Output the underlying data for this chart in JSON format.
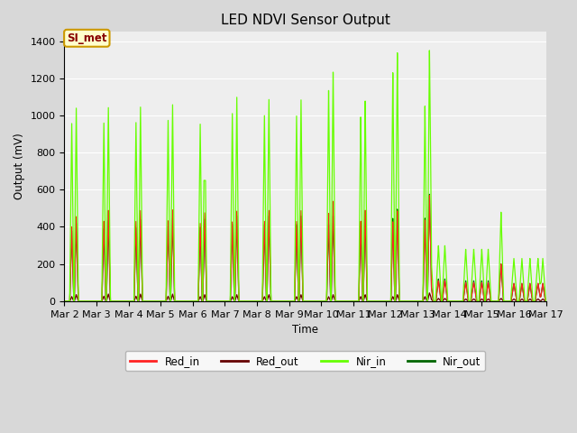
{
  "title": "LED NDVI Sensor Output",
  "xlabel": "Time",
  "ylabel": "Output (mV)",
  "ylim": [
    0,
    1450
  ],
  "yticks": [
    0,
    200,
    400,
    600,
    800,
    1000,
    1200,
    1400
  ],
  "xtick_labels": [
    "Mar 2",
    "Mar 3",
    "Mar 4",
    "Mar 5",
    "Mar 6",
    "Mar 7",
    "Mar 8",
    "Mar 9",
    "Mar 10",
    "Mar 11",
    "Mar 12",
    "Mar 13",
    "Mar 14",
    "Mar 15",
    "Mar 16",
    "Mar 17"
  ],
  "annotation_text": "SI_met",
  "annotation_bg": "#ffffcc",
  "annotation_border": "#cc9900",
  "annotation_text_color": "#880000",
  "colors": {
    "Red_in": "#ff2222",
    "Red_out": "#660000",
    "Nir_in": "#66ff00",
    "Nir_out": "#006600"
  },
  "bg_color": "#d8d8d8",
  "plot_bg": "#eeeeee",
  "grid_color": "#ffffff",
  "pulse_data": {
    "centers_day": [
      0.3,
      1.3,
      2.3,
      3.3,
      4.3,
      5.3,
      6.3,
      7.3,
      8.3,
      9.3,
      10.3,
      11.3
    ],
    "nir_in_h": [
      1040,
      1045,
      1050,
      1065,
      1045,
      1110,
      1100,
      1100,
      1250,
      1090,
      1350,
      1150
    ],
    "nir_out_h": [
      420,
      435,
      440,
      450,
      445,
      465,
      465,
      465,
      465,
      465,
      500,
      500
    ],
    "red_in_h": [
      455,
      490,
      490,
      495,
      480,
      490,
      495,
      495,
      545,
      495,
      490,
      500
    ],
    "red_out_h": [
      35,
      38,
      38,
      38,
      35,
      35,
      35,
      35,
      35,
      35,
      35,
      35
    ]
  },
  "figsize": [
    6.4,
    4.8
  ],
  "dpi": 100
}
